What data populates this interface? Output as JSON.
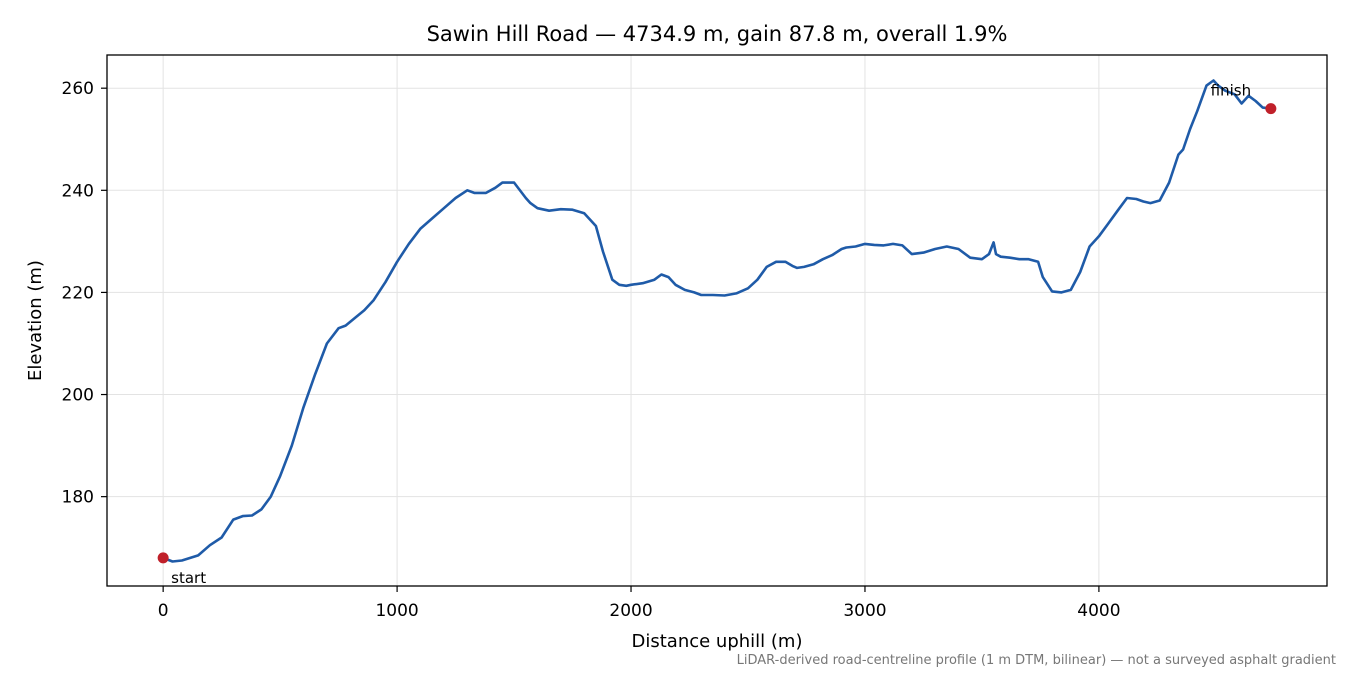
{
  "chart_data": {
    "type": "line",
    "title": "Sawin Hill Road — 4734.9 m, gain 87.8 m, overall 1.9%",
    "xlabel": "Distance uphill (m)",
    "ylabel": "Elevation (m)",
    "xlim": [
      -240,
      4975
    ],
    "ylim": [
      162.5,
      266.5
    ],
    "xticks": [
      0,
      1000,
      2000,
      3000,
      4000
    ],
    "yticks": [
      180,
      200,
      220,
      240,
      260
    ],
    "grid": true,
    "footnote": "LiDAR-derived road-centreline profile (1 m DTM, bilinear) — not a surveyed asphalt gradient",
    "colors": {
      "line": "#1f5ba8",
      "marker": "#c0202a",
      "grid": "#e3e3e3",
      "footnote": "#777777"
    },
    "series": [
      {
        "x": [
          0,
          40,
          80,
          150,
          200,
          250,
          300,
          340,
          380,
          420,
          460,
          500,
          550,
          600,
          650,
          700,
          750,
          780,
          820,
          860,
          900,
          950,
          1000,
          1050,
          1100,
          1150,
          1200,
          1250,
          1300,
          1330,
          1380,
          1420,
          1450,
          1500,
          1550,
          1570,
          1600,
          1650,
          1700,
          1750,
          1800,
          1850,
          1880,
          1920,
          1950,
          1980,
          2000,
          2050,
          2100,
          2130,
          2160,
          2190,
          2230,
          2270,
          2300,
          2350,
          2400,
          2450,
          2500,
          2540,
          2580,
          2620,
          2660,
          2690,
          2710,
          2740,
          2780,
          2820,
          2860,
          2900,
          2920,
          2960,
          3000,
          3040,
          3080,
          3120,
          3160,
          3200,
          3250,
          3300,
          3350,
          3400,
          3450,
          3500,
          3530,
          3550,
          3560,
          3580,
          3620,
          3660,
          3700,
          3740,
          3760,
          3800,
          3840,
          3880,
          3920,
          3960,
          4000,
          4040,
          4080,
          4120,
          4160,
          4190,
          4220,
          4260,
          4300,
          4340,
          4360,
          4390,
          4420,
          4460,
          4490,
          4510,
          4540,
          4580,
          4610,
          4640,
          4670,
          4700,
          4735
        ],
        "y": [
          168,
          167.3,
          167.5,
          168.5,
          170.5,
          172,
          175.5,
          176.2,
          176.3,
          177.5,
          180,
          184,
          190,
          197.5,
          204,
          210,
          213,
          213.5,
          215,
          216.5,
          218.5,
          222,
          226,
          229.5,
          232.5,
          234.5,
          236.5,
          238.5,
          240,
          239.5,
          239.5,
          240.5,
          241.5,
          241.5,
          238.5,
          237.5,
          236.5,
          236,
          236.3,
          236.2,
          235.5,
          233,
          228,
          222.5,
          221.5,
          221.3,
          221.5,
          221.8,
          222.5,
          223.5,
          223,
          221.5,
          220.5,
          220,
          219.5,
          219.5,
          219.4,
          219.8,
          220.8,
          222.5,
          225,
          226,
          226,
          225.2,
          224.8,
          225,
          225.5,
          226.5,
          227.3,
          228.5,
          228.8,
          229,
          229.5,
          229.3,
          229.2,
          229.5,
          229.2,
          227.5,
          227.8,
          228.5,
          229,
          228.5,
          226.8,
          226.5,
          227.5,
          229.8,
          227.5,
          227,
          226.8,
          226.5,
          226.5,
          226,
          223,
          220.2,
          220,
          220.5,
          224,
          229,
          231,
          233.5,
          236,
          238.5,
          238.3,
          237.8,
          237.5,
          238,
          241.5,
          247,
          248,
          252,
          255.5,
          260.5,
          261.5,
          260.5,
          259.5,
          258.8,
          257,
          258.5,
          257.5,
          256.2,
          256
        ]
      }
    ],
    "annotations": [
      {
        "text": "start",
        "x": 0,
        "y": 168
      },
      {
        "text": "finish",
        "x": 4735,
        "y": 256
      }
    ]
  }
}
